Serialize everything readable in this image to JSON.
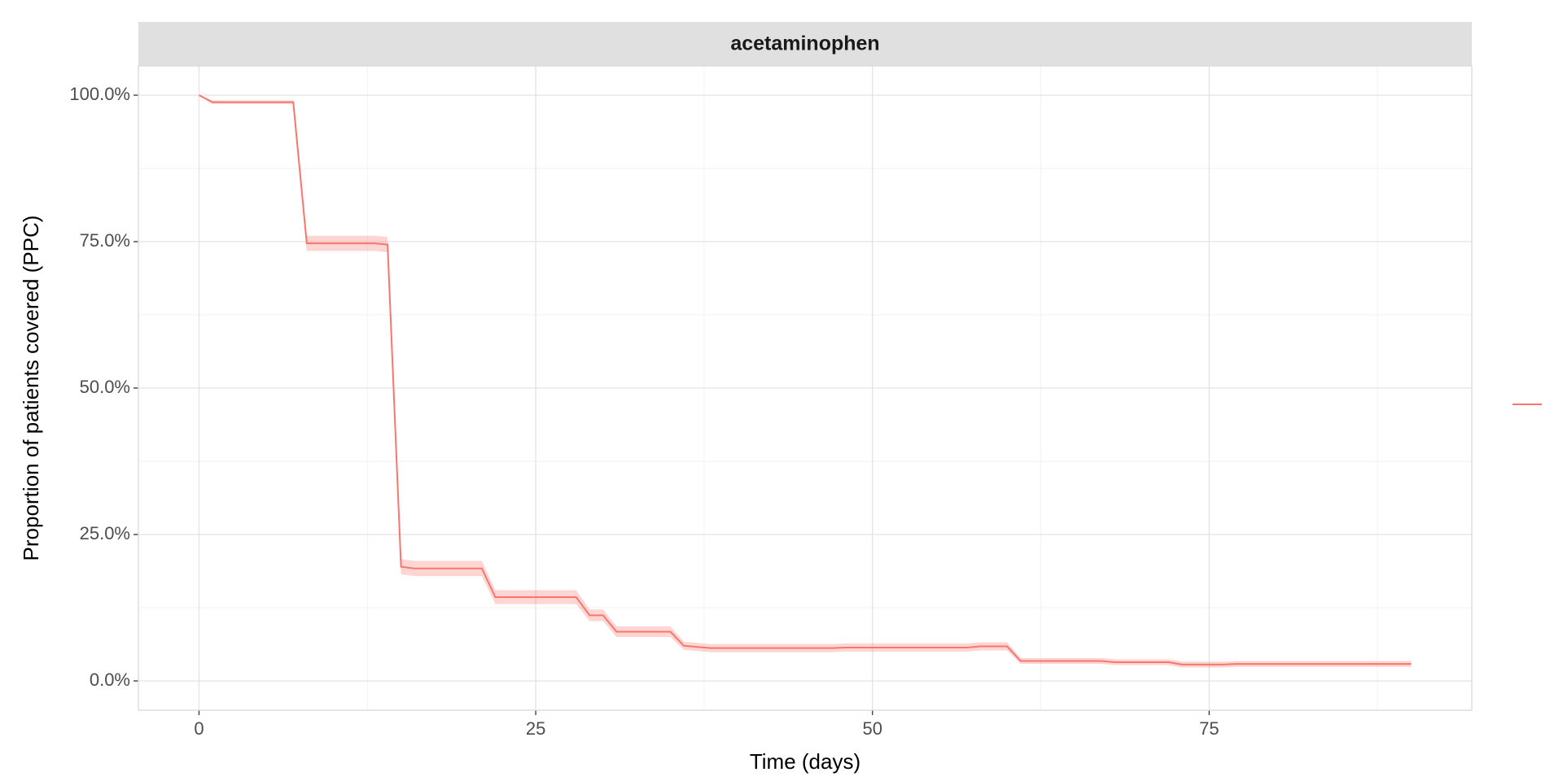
{
  "chart_data": {
    "type": "line",
    "panel_title": "acetaminophen",
    "x_label": "Time (days)",
    "y_label": "Proportion of patients covered (PPC)",
    "x": [
      0,
      1,
      2,
      3,
      4,
      5,
      6,
      7,
      8,
      9,
      10,
      11,
      12,
      13,
      14,
      15,
      16,
      17,
      18,
      19,
      20,
      21,
      22,
      23,
      24,
      25,
      26,
      27,
      28,
      29,
      30,
      31,
      32,
      33,
      34,
      35,
      36,
      37,
      38,
      39,
      40,
      41,
      42,
      43,
      44,
      45,
      46,
      47,
      48,
      49,
      50,
      51,
      52,
      53,
      54,
      55,
      56,
      57,
      58,
      59,
      60,
      61,
      62,
      63,
      64,
      65,
      66,
      67,
      68,
      69,
      70,
      71,
      72,
      73,
      74,
      75,
      76,
      77,
      78,
      79,
      80,
      81,
      82,
      83,
      84,
      85,
      86,
      87,
      88,
      89,
      90
    ],
    "series": [
      {
        "color": "#F8766D",
        "values": [
          100,
          98.8,
          98.8,
          98.8,
          98.8,
          98.8,
          98.8,
          98.8,
          74.7,
          74.7,
          74.7,
          74.7,
          74.7,
          74.7,
          74.5,
          19.5,
          19.2,
          19.2,
          19.2,
          19.2,
          19.2,
          19.2,
          14.3,
          14.3,
          14.3,
          14.3,
          14.3,
          14.3,
          14.3,
          11.2,
          11.2,
          8.4,
          8.4,
          8.4,
          8.4,
          8.4,
          6.0,
          5.8,
          5.6,
          5.6,
          5.6,
          5.6,
          5.6,
          5.6,
          5.6,
          5.6,
          5.6,
          5.6,
          5.7,
          5.7,
          5.7,
          5.7,
          5.7,
          5.7,
          5.7,
          5.7,
          5.7,
          5.7,
          5.9,
          5.9,
          5.9,
          3.4,
          3.4,
          3.4,
          3.4,
          3.4,
          3.4,
          3.4,
          3.2,
          3.2,
          3.2,
          3.2,
          3.2,
          2.8,
          2.8,
          2.8,
          2.8,
          2.9,
          2.9,
          2.9,
          2.9,
          2.9,
          2.9,
          2.9,
          2.9,
          2.9,
          2.9,
          2.9,
          2.9,
          2.9,
          2.9
        ],
        "lower": [
          99.9,
          98.5,
          98.5,
          98.5,
          98.5,
          98.5,
          98.5,
          98.5,
          73.4,
          73.4,
          73.4,
          73.4,
          73.4,
          73.4,
          73.2,
          18.2,
          17.9,
          17.9,
          17.9,
          17.9,
          17.9,
          17.9,
          13.1,
          13.1,
          13.1,
          13.1,
          13.1,
          13.1,
          13.1,
          10.2,
          10.2,
          7.5,
          7.5,
          7.5,
          7.5,
          7.5,
          5.3,
          5.1,
          4.9,
          4.9,
          4.9,
          4.9,
          4.9,
          4.9,
          4.9,
          4.9,
          4.9,
          4.9,
          5.0,
          5.0,
          5.0,
          5.0,
          5.0,
          5.0,
          5.0,
          5.0,
          5.0,
          5.0,
          5.2,
          5.2,
          5.2,
          2.9,
          2.9,
          2.9,
          2.9,
          2.9,
          2.9,
          2.9,
          2.7,
          2.7,
          2.7,
          2.7,
          2.7,
          2.3,
          2.3,
          2.3,
          2.3,
          2.4,
          2.4,
          2.4,
          2.4,
          2.4,
          2.4,
          2.4,
          2.4,
          2.4,
          2.4,
          2.4,
          2.4,
          2.4,
          2.4
        ],
        "upper": [
          100,
          99.1,
          99.1,
          99.1,
          99.1,
          99.1,
          99.1,
          99.1,
          76.0,
          76.0,
          76.0,
          76.0,
          76.0,
          76.0,
          75.8,
          20.8,
          20.5,
          20.5,
          20.5,
          20.5,
          20.5,
          20.5,
          15.5,
          15.5,
          15.5,
          15.5,
          15.5,
          15.5,
          15.5,
          12.2,
          12.2,
          9.3,
          9.3,
          9.3,
          9.3,
          9.3,
          6.7,
          6.5,
          6.3,
          6.3,
          6.3,
          6.3,
          6.3,
          6.3,
          6.3,
          6.3,
          6.3,
          6.3,
          6.4,
          6.4,
          6.4,
          6.4,
          6.4,
          6.4,
          6.4,
          6.4,
          6.4,
          6.4,
          6.6,
          6.6,
          6.6,
          3.9,
          3.9,
          3.9,
          3.9,
          3.9,
          3.9,
          3.9,
          3.7,
          3.7,
          3.7,
          3.7,
          3.7,
          3.3,
          3.3,
          3.3,
          3.3,
          3.4,
          3.4,
          3.4,
          3.4,
          3.4,
          3.4,
          3.4,
          3.4,
          3.4,
          3.4,
          3.4,
          3.4,
          3.4,
          3.4
        ]
      }
    ],
    "xlim": [
      -4.5,
      94.5
    ],
    "xticks": [
      0,
      25,
      50,
      75
    ],
    "x_minor_ticks": [
      12.5,
      37.5,
      62.5,
      87.5
    ],
    "ylim": [
      -5,
      105
    ],
    "yticks": [
      {
        "value": 0,
        "label": "0.0%"
      },
      {
        "value": 25,
        "label": "25.0%"
      },
      {
        "value": 50,
        "label": "50.0%"
      },
      {
        "value": 75,
        "label": "75.0%"
      },
      {
        "value": 100,
        "label": "100.0%"
      }
    ],
    "y_minor_ticks": [
      12.5,
      37.5,
      62.5,
      87.5
    ],
    "grid": true,
    "band_opacity": 0.3,
    "legend": "right"
  }
}
